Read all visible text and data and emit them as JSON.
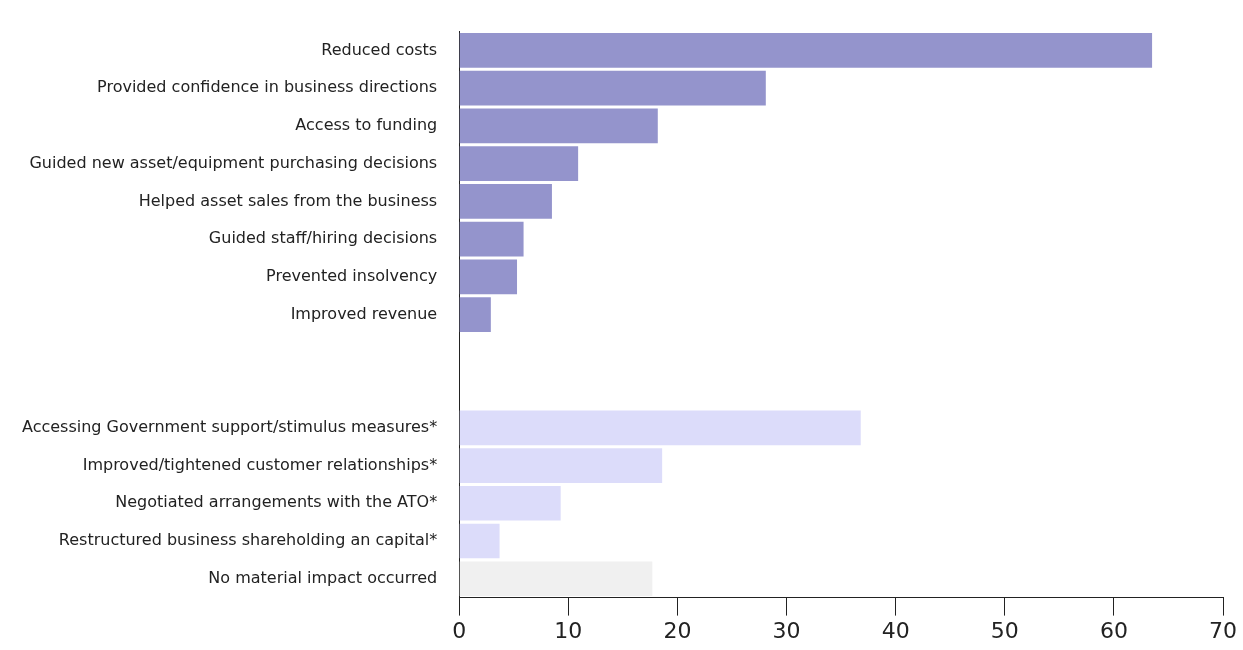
{
  "chart_data": {
    "type": "bar",
    "orientation": "horizontal",
    "categories": [
      "Reduced costs",
      "Provided confidence in business directions",
      "Access to funding",
      "Guided new asset/equipment purchasing decisions",
      "Helped asset sales from the business",
      "Guided staff/hiring decisions",
      "Prevented insolvency",
      "Improved revenue",
      null,
      null,
      "Accessing Government support/stimulus measures*",
      "Improved/tightened customer relationships*",
      "Negotiated arrangements with the ATO*",
      "Restructured business shareholding an capital*",
      "No material impact occurred"
    ],
    "values": [
      63.5,
      28.1,
      18.2,
      10.9,
      8.5,
      5.9,
      5.3,
      2.9,
      null,
      null,
      36.8,
      18.6,
      9.3,
      3.7,
      17.7
    ],
    "colors": [
      "#9494cc",
      "#9494cc",
      "#9494cc",
      "#9494cc",
      "#9494cc",
      "#9494cc",
      "#9494cc",
      "#9494cc",
      "#9494cc",
      "#9494cc",
      "#dcdcfa",
      "#dcdcfa",
      "#dcdcfa",
      "#dcdcfa",
      "#f0f0f0"
    ],
    "xlim": [
      0,
      70
    ],
    "xticks": [
      0,
      10,
      20,
      30,
      40,
      50,
      60,
      70
    ],
    "grid": false,
    "legend": false
  }
}
